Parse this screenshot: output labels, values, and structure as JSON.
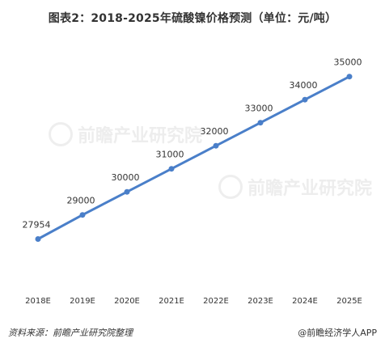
{
  "header": {
    "title": "图表2：2018-2025年硫酸镍价格预测（单位：元/吨）"
  },
  "footer": {
    "source": "资料来源：前瞻产业研究院整理",
    "brand": "@前瞻经济学人APP"
  },
  "watermark": {
    "text": "前瞻产业研究院"
  },
  "colors": {
    "line": "#4a7fc9",
    "point": "#4a7fc9"
  },
  "chart_data": {
    "type": "line",
    "title": "图表2：2018-2025年硫酸镍价格预测（单位：元/吨）",
    "categories": [
      "2018E",
      "2019E",
      "2020E",
      "2021E",
      "2022E",
      "2023E",
      "2024E",
      "2025E"
    ],
    "series": [
      {
        "values": [
          27954,
          29000,
          30000,
          31000,
          32000,
          33000,
          34000,
          35000
        ]
      }
    ],
    "data_labels": [
      "27954",
      "29000",
      "30000",
      "31000",
      "32000",
      "33000",
      "34000",
      "35000"
    ],
    "ylim": [
      26000,
      36000
    ],
    "grid": false,
    "legend": "none"
  }
}
